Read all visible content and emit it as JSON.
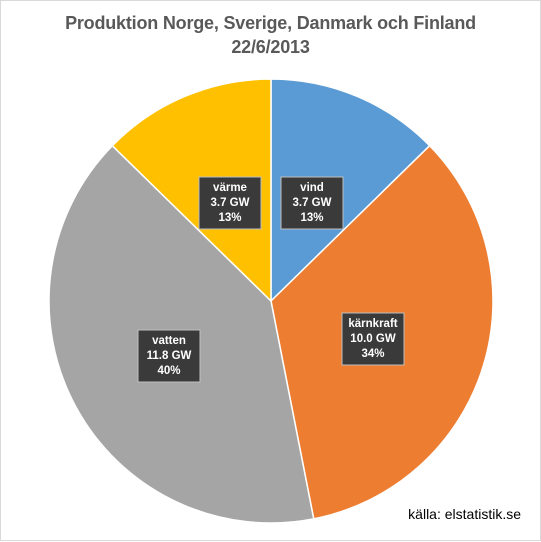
{
  "chart_data": {
    "type": "pie",
    "title_lines": [
      "Produktion Norge, Sverige, Danmark och Finland",
      "22/6/2013"
    ],
    "unit": "GW",
    "slices": [
      {
        "name": "vind",
        "value": 3.7,
        "value_label": "3.7 GW",
        "percent_label": "13%",
        "color": "#5b9bd5"
      },
      {
        "name": "kärnkraft",
        "value": 10.0,
        "value_label": "10.0 GW",
        "percent_label": "34%",
        "color": "#ed7d31"
      },
      {
        "name": "vatten",
        "value": 11.8,
        "value_label": "11.8 GW",
        "percent_label": "40%",
        "color": "#a5a5a5"
      },
      {
        "name": "värme",
        "value": 3.7,
        "value_label": "3.7 GW",
        "percent_label": "13%",
        "color": "#ffc000"
      }
    ],
    "legend": "none",
    "source": "källa: elstatistik.se"
  }
}
